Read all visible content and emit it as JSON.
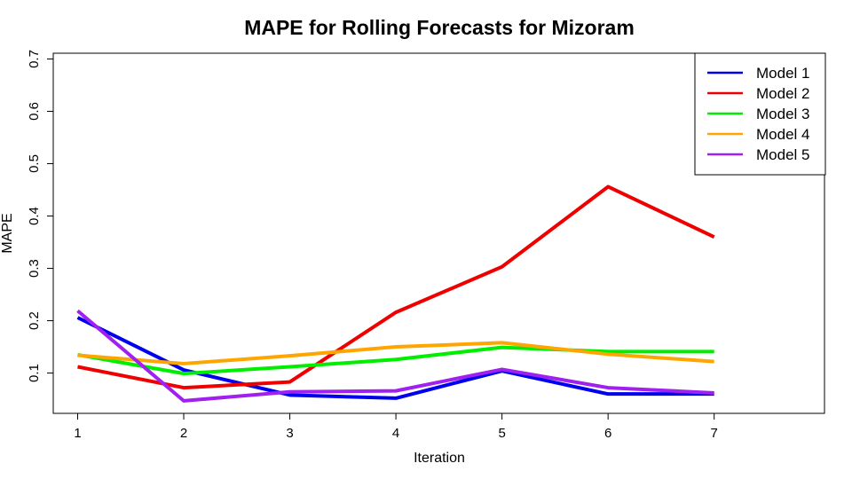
{
  "chart_data": {
    "type": "line",
    "title": "MAPE for Rolling Forecasts for Mizoram",
    "xlabel": "Iteration",
    "ylabel": "MAPE",
    "x": [
      1,
      2,
      3,
      4,
      5,
      6,
      7
    ],
    "xticks": [
      "1",
      "2",
      "3",
      "4",
      "5",
      "6",
      "7"
    ],
    "yticks": [
      "0.1",
      "0.2",
      "0.3",
      "0.4",
      "0.5",
      "0.6",
      "0.7"
    ],
    "xlim": [
      0.77,
      8.04
    ],
    "ylim": [
      0.023,
      0.711
    ],
    "grid": false,
    "legend_position": "top-right",
    "series": [
      {
        "name": "Model 1",
        "color": "#0000ee",
        "values": [
          0.206,
          0.106,
          0.058,
          0.052,
          0.104,
          0.06,
          0.06
        ]
      },
      {
        "name": "Model 2",
        "color": "#ee0000",
        "values": [
          0.112,
          0.072,
          0.083,
          0.216,
          0.303,
          0.456,
          0.36
        ]
      },
      {
        "name": "Model 3",
        "color": "#00ee00",
        "values": [
          0.135,
          0.099,
          0.112,
          0.126,
          0.149,
          0.141,
          0.141
        ]
      },
      {
        "name": "Model 4",
        "color": "#ffa500",
        "values": [
          0.134,
          0.118,
          0.133,
          0.15,
          0.158,
          0.136,
          0.122
        ]
      },
      {
        "name": "Model 5",
        "color": "#a020f0",
        "values": [
          0.219,
          0.047,
          0.064,
          0.066,
          0.107,
          0.072,
          0.062
        ]
      }
    ]
  }
}
